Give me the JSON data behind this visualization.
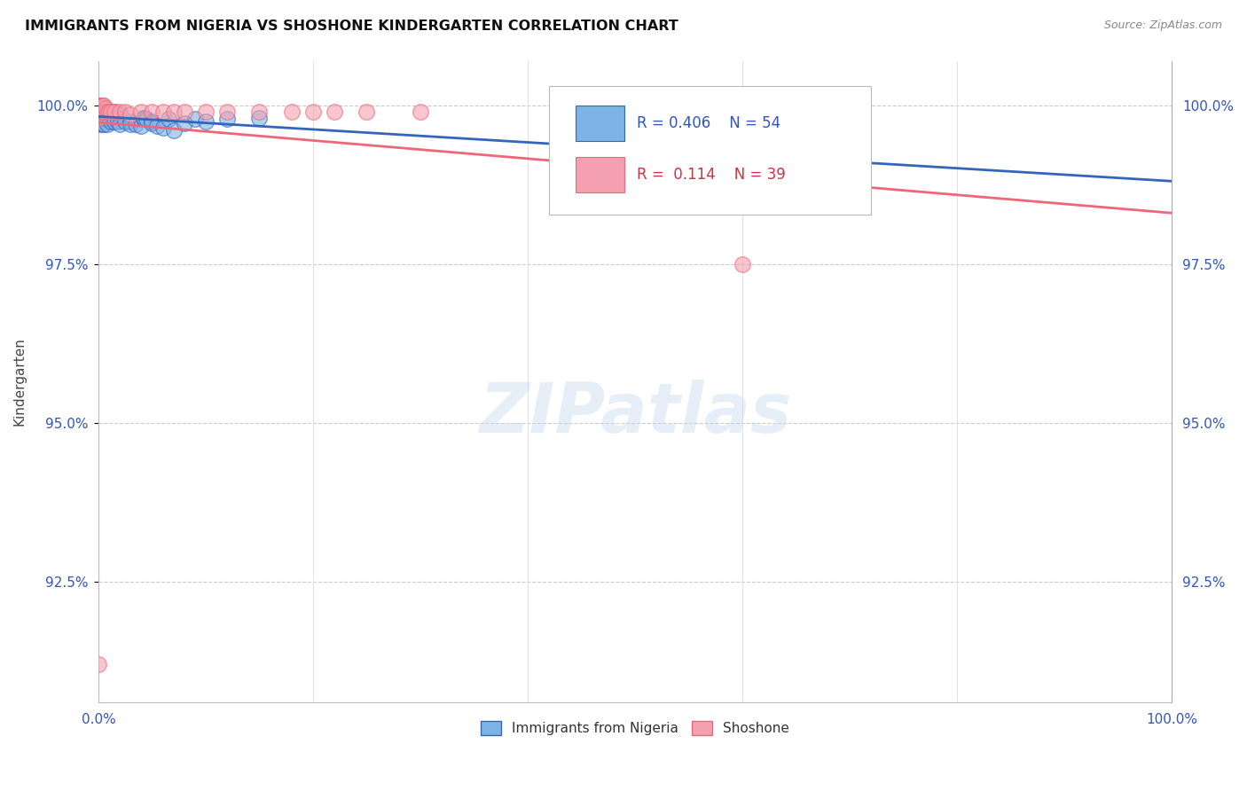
{
  "title": "IMMIGRANTS FROM NIGERIA VS SHOSHONE KINDERGARTEN CORRELATION CHART",
  "source": "Source: ZipAtlas.com",
  "ylabel": "Kindergarten",
  "ytick_labels": [
    "100.0%",
    "97.5%",
    "95.0%",
    "92.5%"
  ],
  "ytick_values": [
    1.0,
    0.975,
    0.95,
    0.925
  ],
  "xmin": 0.0,
  "xmax": 1.0,
  "ymin": 0.906,
  "ymax": 1.007,
  "legend_label1": "Immigrants from Nigeria",
  "legend_label2": "Shoshone",
  "r1": 0.406,
  "n1": 54,
  "r2": 0.114,
  "n2": 39,
  "color_blue": "#7EB3E8",
  "color_pink": "#F5A0B0",
  "color_blue_line": "#3366BB",
  "color_pink_line": "#EE6677",
  "color_blue_text": "#3355BB",
  "color_pink_text": "#CC3344",
  "nigeria_x": [
    0.0,
    0.0,
    0.0,
    0.0,
    0.0,
    0.002,
    0.002,
    0.002,
    0.003,
    0.003,
    0.003,
    0.003,
    0.004,
    0.004,
    0.004,
    0.005,
    0.005,
    0.005,
    0.006,
    0.006,
    0.007,
    0.007,
    0.007,
    0.008,
    0.008,
    0.009,
    0.01,
    0.01,
    0.012,
    0.015,
    0.015,
    0.018,
    0.02,
    0.02,
    0.025,
    0.03,
    0.03,
    0.035,
    0.04,
    0.042,
    0.042,
    0.042,
    0.045,
    0.05,
    0.05,
    0.055,
    0.06,
    0.065,
    0.07,
    0.08,
    0.09,
    0.1,
    0.12,
    0.15
  ],
  "nigeria_y": [
    0.9995,
    0.999,
    0.9985,
    0.998,
    0.997,
    0.9995,
    0.999,
    0.998,
    0.9995,
    0.999,
    0.9985,
    0.998,
    0.999,
    0.998,
    0.997,
    0.999,
    0.9985,
    0.997,
    0.999,
    0.998,
    0.999,
    0.9985,
    0.998,
    0.9985,
    0.997,
    0.9985,
    0.9985,
    0.998,
    0.9975,
    0.999,
    0.9975,
    0.9975,
    0.9985,
    0.997,
    0.9975,
    0.9975,
    0.997,
    0.997,
    0.9968,
    0.998,
    0.998,
    0.998,
    0.9978,
    0.9975,
    0.9972,
    0.9968,
    0.9965,
    0.9978,
    0.996,
    0.9972,
    0.9978,
    0.9975,
    0.9978,
    0.998
  ],
  "shoshone_x": [
    0.0,
    0.0,
    0.0,
    0.0,
    0.0,
    0.0,
    0.0,
    0.002,
    0.002,
    0.003,
    0.003,
    0.004,
    0.004,
    0.005,
    0.005,
    0.006,
    0.007,
    0.008,
    0.01,
    0.012,
    0.015,
    0.02,
    0.025,
    0.03,
    0.04,
    0.05,
    0.06,
    0.07,
    0.08,
    0.1,
    0.12,
    0.15,
    0.18,
    0.2,
    0.22,
    0.25,
    0.3,
    0.6,
    0.0
  ],
  "shoshone_y": [
    1.0,
    1.0,
    1.0,
    1.0,
    0.9995,
    0.999,
    0.998,
    1.0,
    0.9995,
    1.0,
    0.999,
    1.0,
    0.999,
    1.0,
    0.999,
    0.999,
    0.9995,
    0.999,
    0.999,
    0.999,
    0.999,
    0.999,
    0.999,
    0.9985,
    0.999,
    0.999,
    0.999,
    0.999,
    0.999,
    0.999,
    0.999,
    0.999,
    0.999,
    0.999,
    0.999,
    0.999,
    0.999,
    0.975,
    0.912
  ]
}
